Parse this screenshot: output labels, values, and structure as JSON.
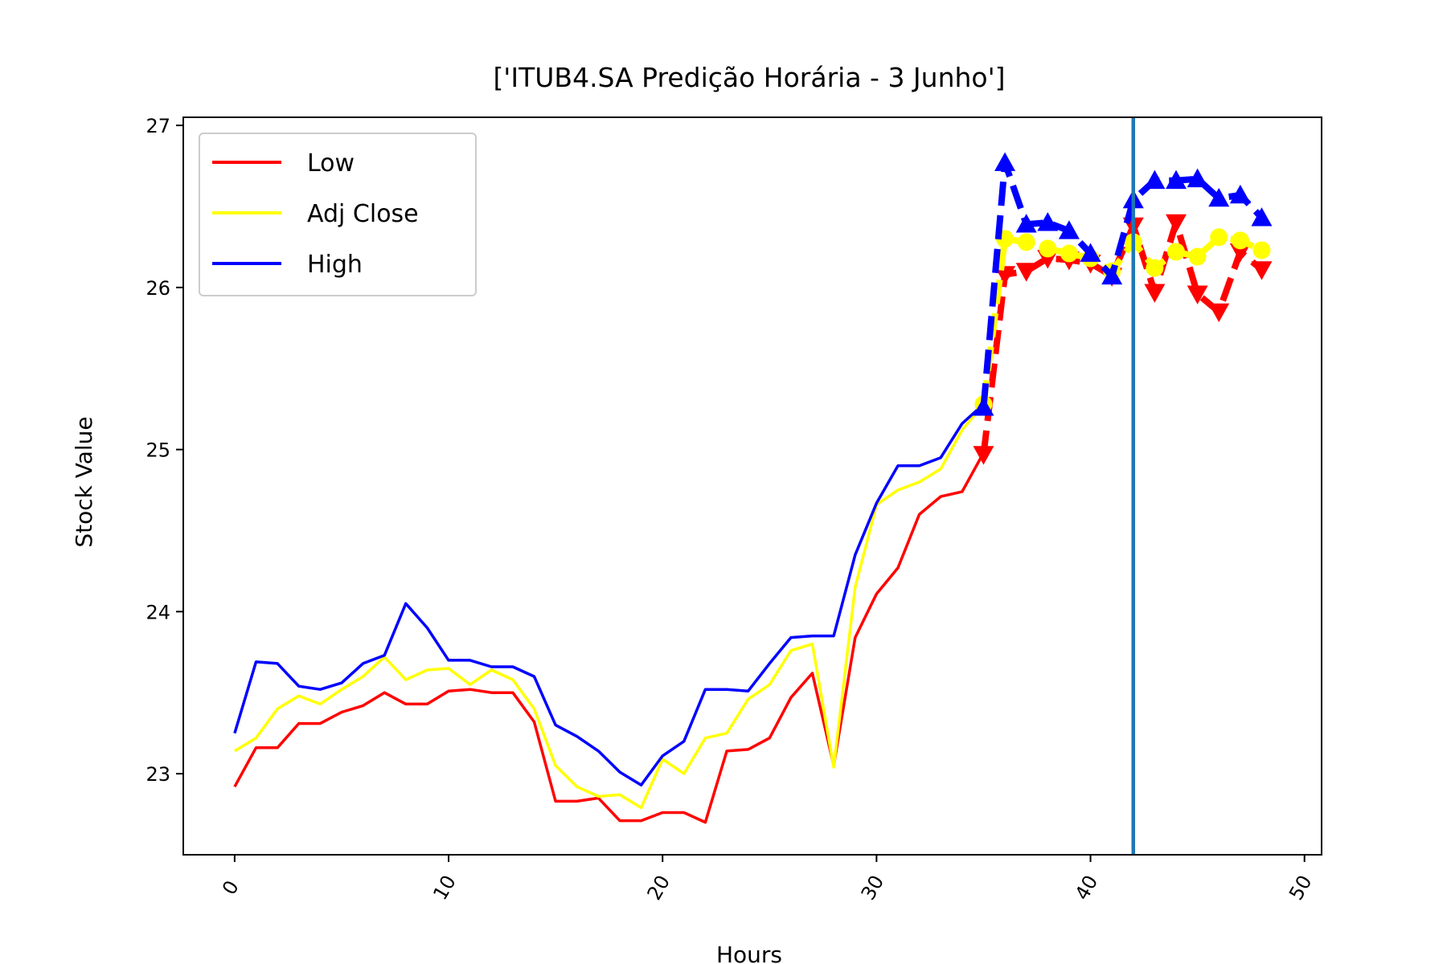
{
  "chart_data": {
    "type": "line",
    "title": "['ITUB4.SA Predição Horária - 3 Junho']",
    "xlabel": "Hours",
    "ylabel": "Stock Value",
    "xlim": [
      -2.4,
      50.8
    ],
    "ylim": [
      22.5,
      27.05
    ],
    "xticks": [
      0,
      10,
      20,
      30,
      40,
      50
    ],
    "xtick_labels": [
      "0",
      "10",
      "20",
      "30",
      "40",
      "50"
    ],
    "yticks": [
      23,
      24,
      25,
      26,
      27
    ],
    "ytick_labels": [
      "23",
      "24",
      "25",
      "26",
      "27"
    ],
    "xtick_rotation": 60,
    "grid": false,
    "legend_position": "upper-left",
    "vertical_line": {
      "x": 42,
      "color": "#1f77b4"
    },
    "x": [
      0,
      1,
      2,
      3,
      4,
      5,
      6,
      7,
      8,
      9,
      10,
      11,
      12,
      13,
      14,
      15,
      16,
      17,
      18,
      19,
      20,
      21,
      22,
      23,
      24,
      25,
      26,
      27,
      28,
      29,
      30,
      31,
      32,
      33,
      34,
      35
    ],
    "series": [
      {
        "name": "Low",
        "color": "#ff0000",
        "values": [
          22.92,
          23.16,
          23.16,
          23.31,
          23.31,
          23.38,
          23.42,
          23.5,
          23.43,
          23.43,
          23.51,
          23.52,
          23.5,
          23.5,
          23.32,
          22.83,
          22.83,
          22.85,
          22.71,
          22.71,
          22.76,
          22.76,
          22.7,
          23.14,
          23.15,
          23.22,
          23.47,
          23.62,
          23.05,
          23.84,
          24.11,
          24.27,
          24.6,
          24.71,
          24.74,
          24.98
        ]
      },
      {
        "name": "Adj Close",
        "color": "#ffff00",
        "values": [
          23.14,
          23.22,
          23.4,
          23.48,
          23.43,
          23.52,
          23.6,
          23.72,
          23.58,
          23.64,
          23.65,
          23.55,
          23.64,
          23.58,
          23.4,
          23.05,
          22.92,
          22.86,
          22.87,
          22.79,
          23.09,
          23.0,
          23.22,
          23.25,
          23.46,
          23.55,
          23.76,
          23.8,
          23.04,
          24.15,
          24.66,
          24.75,
          24.8,
          24.88,
          25.12,
          25.28
        ]
      },
      {
        "name": "High",
        "color": "#0000ff",
        "values": [
          23.25,
          23.69,
          23.68,
          23.54,
          23.52,
          23.56,
          23.68,
          23.73,
          24.05,
          23.9,
          23.7,
          23.7,
          23.66,
          23.66,
          23.6,
          23.3,
          23.23,
          23.14,
          23.01,
          22.93,
          23.11,
          23.2,
          23.52,
          23.52,
          23.51,
          23.68,
          23.84,
          23.85,
          23.85,
          24.35,
          24.67,
          24.9,
          24.9,
          24.95,
          25.16,
          25.28
        ]
      }
    ],
    "prediction_series": [
      {
        "name": "Low",
        "color": "#ff0000",
        "marker": "triangle-down",
        "x": [
          35,
          36,
          37,
          38,
          39,
          40,
          41,
          42,
          43,
          44,
          45,
          46,
          47,
          48
        ],
        "values": [
          24.97,
          26.08,
          26.1,
          26.18,
          26.17,
          26.15,
          26.07,
          26.38,
          25.97,
          26.4,
          25.96,
          25.85,
          26.22,
          26.11
        ]
      },
      {
        "name": "Adj Close",
        "color": "#ffff00",
        "marker": "circle",
        "x": [
          35,
          36,
          37,
          38,
          39,
          40,
          41,
          42,
          43,
          44,
          45,
          46,
          47,
          48
        ],
        "values": [
          25.28,
          26.3,
          26.28,
          26.24,
          26.21,
          26.18,
          26.1,
          26.28,
          26.12,
          26.22,
          26.19,
          26.31,
          26.29,
          26.23
        ]
      },
      {
        "name": "High",
        "color": "#0000ff",
        "marker": "triangle-up",
        "x": [
          35,
          36,
          37,
          38,
          39,
          40,
          41,
          42,
          43,
          44,
          45,
          46,
          47,
          48
        ],
        "values": [
          25.26,
          26.77,
          26.39,
          26.4,
          26.35,
          26.21,
          26.07,
          26.54,
          26.66,
          26.66,
          26.67,
          26.55,
          26.57,
          26.43
        ]
      }
    ],
    "legend": [
      {
        "label": "Low",
        "color": "#ff0000"
      },
      {
        "label": "Adj Close",
        "color": "#ffff00"
      },
      {
        "label": "High",
        "color": "#0000ff"
      }
    ]
  }
}
